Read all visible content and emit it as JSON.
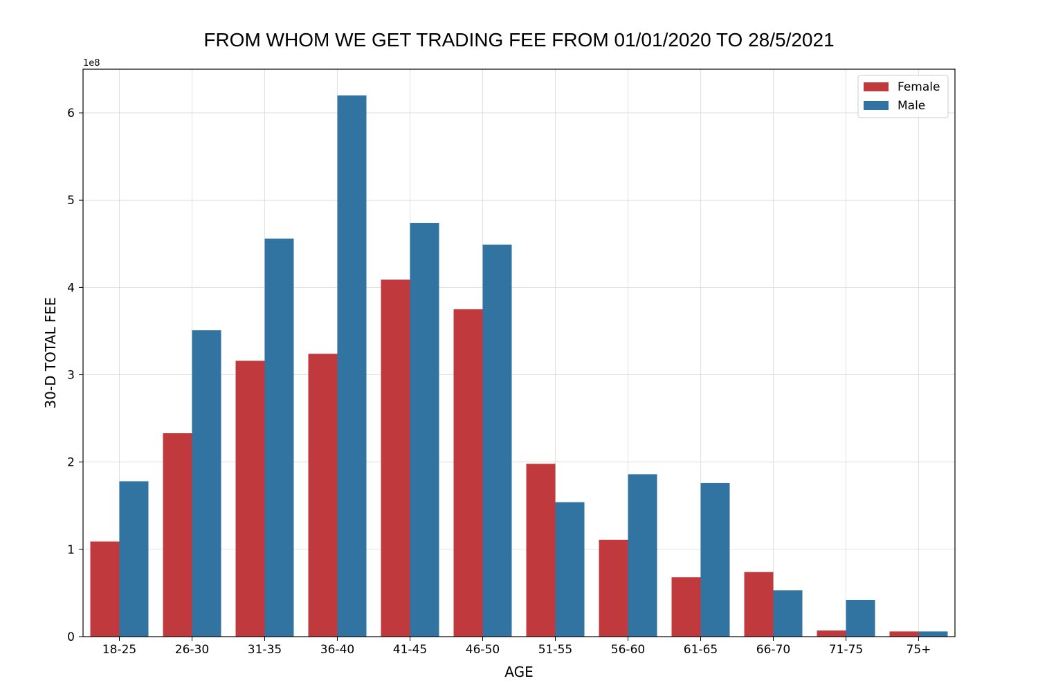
{
  "chart_data": {
    "type": "bar",
    "title": "FROM WHOM WE GET TRADING FEE FROM 01/01/2020 TO 28/5/2021",
    "xlabel": "AGE",
    "ylabel": "30-D TOTAL FEE",
    "y_offset_label": "1e8",
    "y_scale": 100000000,
    "ylim": [
      0,
      6.5
    ],
    "yticks": [
      "0",
      "1",
      "2",
      "3",
      "4",
      "5",
      "6"
    ],
    "grid": true,
    "legend_position": "top-right",
    "categories": [
      "18-25",
      "26-30",
      "31-35",
      "36-40",
      "41-45",
      "46-50",
      "51-55",
      "56-60",
      "61-65",
      "66-70",
      "71-75",
      "75+"
    ],
    "series": [
      {
        "name": "Female",
        "color": "#c03a3d",
        "values": [
          1.09,
          2.33,
          3.16,
          3.24,
          4.09,
          3.75,
          1.98,
          1.11,
          0.68,
          0.74,
          0.07,
          0.06
        ]
      },
      {
        "name": "Male",
        "color": "#3274a1",
        "values": [
          1.78,
          3.51,
          4.56,
          6.2,
          4.74,
          4.49,
          1.54,
          1.86,
          1.76,
          0.53,
          0.42,
          0.06
        ]
      }
    ]
  }
}
